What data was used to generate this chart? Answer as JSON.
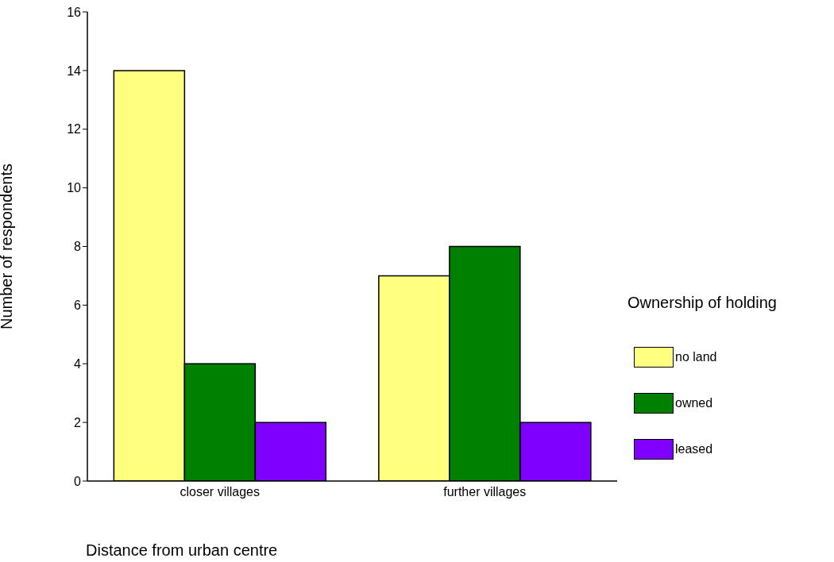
{
  "chart_data": {
    "type": "bar",
    "xlabel": "Distance from urban centre",
    "ylabel": "Number of respondents",
    "legend_title": "Ownership of holding",
    "categories": [
      "closer villages",
      "further villages"
    ],
    "series": [
      {
        "name": "no land",
        "color": "#ffff80",
        "values": [
          14,
          7
        ]
      },
      {
        "name": "owned",
        "color": "#008000",
        "values": [
          4,
          8
        ]
      },
      {
        "name": "leased",
        "color": "#8000ff",
        "values": [
          2,
          2
        ]
      }
    ],
    "ylim": [
      0,
      16
    ],
    "yticks": [
      0,
      2,
      4,
      6,
      8,
      10,
      12,
      14,
      16
    ],
    "grid": false,
    "legend": "right"
  }
}
